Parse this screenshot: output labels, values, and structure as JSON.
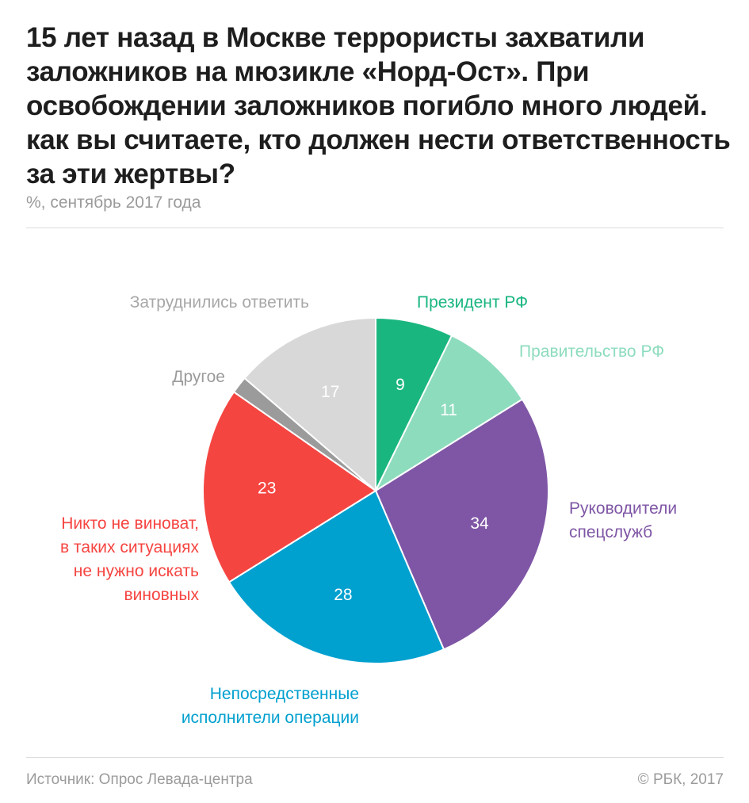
{
  "header": {
    "title": "15 лет назад в Москве террористы захватили заложников на мюзикле «Норд-Ост». При освобождении заложников погибло много людей. как вы считаете, кто должен нести ответственность за эти жертвы?",
    "subtitle": "%, сентябрь 2017 года"
  },
  "footer": {
    "source": "Источник: Опрос Левада-центра",
    "copyright": "© РБК, 2017"
  },
  "chart_data": {
    "type": "pie",
    "title": "15 лет назад в Москве террористы захватили заложников на мюзикле «Норд-Ост». При освобождении заложников погибло много людей. как вы считаете, кто должен нести ответственность за эти жертвы?",
    "subtitle": "%, сентябрь 2017 года",
    "start_angle": "12 o'clock",
    "direction": "clockwise",
    "slices": [
      {
        "label": "Президент РФ",
        "label_lines": [
          "Президент РФ"
        ],
        "value": 9,
        "value_text": "9",
        "color": "#1ab67f",
        "label_color": "#1ab67f",
        "value_color": "#ffffff"
      },
      {
        "label": "Правительство РФ",
        "label_lines": [
          "Правительство РФ"
        ],
        "value": 11,
        "value_text": "11",
        "color": "#8ddcbe",
        "label_color": "#8ddcbe",
        "value_color": "#ffffff"
      },
      {
        "label": "Руководители спецслужб",
        "label_lines": [
          "Руководители",
          "спецслужб"
        ],
        "value": 34,
        "value_text": "34",
        "color": "#7f56a5",
        "label_color": "#7f56a5",
        "value_color": "#ffffff"
      },
      {
        "label": "Непосредственные исполнители операции",
        "label_lines": [
          "Непосредственные",
          "исполнители операции"
        ],
        "value": 28,
        "value_text": "28",
        "color": "#00a0cf",
        "label_color": "#00a0cf",
        "value_color": "#ffffff"
      },
      {
        "label": "Никто не виноват, в таких ситуациях не нужно искать виновных",
        "label_lines": [
          "Никто не виноват,",
          "в таких ситуациях",
          "не нужно искать",
          "виновных"
        ],
        "value": 23,
        "value_text": "23",
        "color": "#f54541",
        "label_color": "#f54541",
        "value_color": "#ffffff"
      },
      {
        "label": "Другое",
        "label_lines": [
          "Другое"
        ],
        "value": 2,
        "value_text": "",
        "color": "#9b9b9b",
        "label_color": "#9b9b9b",
        "value_color": "#ffffff"
      },
      {
        "label": "Затруднились ответить",
        "label_lines": [
          "Затруднились ответить"
        ],
        "value": 17,
        "value_text": "17",
        "color": "#d8d8d8",
        "label_color": "#a8a8a8",
        "value_color": "#ffffff"
      }
    ]
  }
}
